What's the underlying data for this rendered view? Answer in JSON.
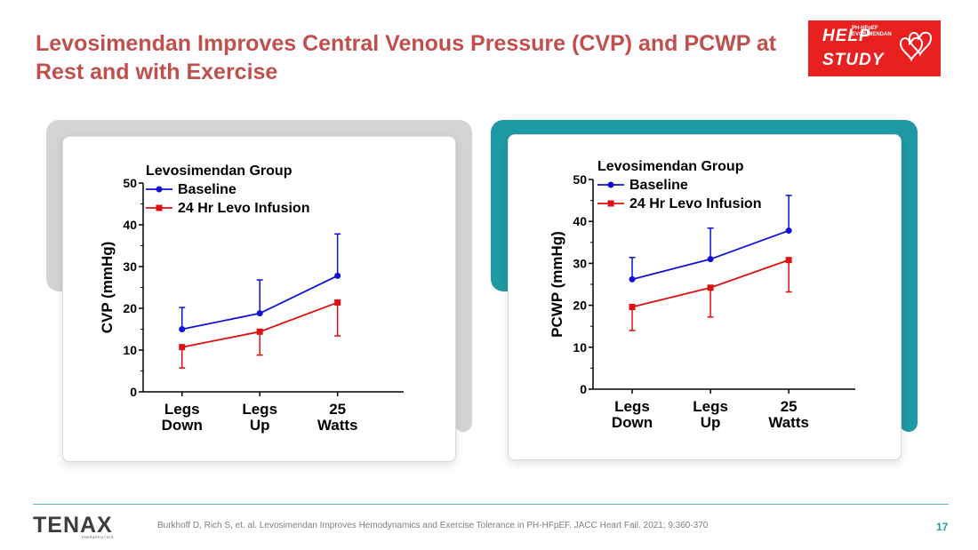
{
  "slide": {
    "title": "Levosimendan Improves Central Venous Pressure (CVP) and PCWP at Rest and with Exercise",
    "logo": {
      "top": "HELP",
      "sub1": "PH-HFpEF",
      "sub2": "EVOSIMENDAN",
      "bottom": "STUDY",
      "icon": "double-heart-icon"
    },
    "brand": {
      "name": "TENAX",
      "sub": "THERAPEUTICS"
    },
    "citation": "Burkhoff D, Rich S, et. al. Levosimendan Improves Hemodynamics and Exercise Tolerance in PH-HFpEF. JACC Heart Fail. 2021; 9:360-370",
    "page_number": "17",
    "colors": {
      "title": "#c0504d",
      "accent_teal": "#1f9aa4",
      "left_panel_back": "#d4d4d4",
      "badge_red": "#e8201f",
      "baseline": "#1010d8",
      "levo": "#e01010"
    }
  },
  "chart_data": [
    {
      "type": "line",
      "title": "",
      "legend_title": "Levosimendan Group",
      "xlabel": "",
      "ylabel": "CVP (mmHg)",
      "categories": [
        "Legs Down",
        "Legs Up",
        "25 Watts"
      ],
      "ylim": [
        0,
        50
      ],
      "yticks": [
        0,
        10,
        20,
        30,
        40,
        50
      ],
      "legend_position": "top-left",
      "series": [
        {
          "name": "Baseline",
          "color": "#1010d8",
          "marker": "circle",
          "values": [
            15,
            18.8,
            27.8
          ],
          "error_upper": [
            5.2,
            8,
            10
          ],
          "error_direction": "up"
        },
        {
          "name": "24 Hr Levo Infusion",
          "color": "#e01010",
          "marker": "square",
          "values": [
            10.7,
            14.4,
            21.4
          ],
          "error_lower": [
            5,
            5.6,
            8
          ],
          "error_direction": "down"
        }
      ]
    },
    {
      "type": "line",
      "title": "",
      "legend_title": "Levosimendan Group",
      "xlabel": "",
      "ylabel": "PCWP (mmHg)",
      "categories": [
        "Legs Down",
        "Legs Up",
        "25 Watts"
      ],
      "ylim": [
        0,
        50
      ],
      "yticks": [
        0,
        10,
        20,
        30,
        40,
        50
      ],
      "legend_position": "top-left",
      "series": [
        {
          "name": "Baseline",
          "color": "#1010d8",
          "marker": "circle",
          "values": [
            26.2,
            31,
            37.8
          ],
          "error_upper": [
            5.2,
            7.4,
            8.4
          ],
          "error_direction": "up"
        },
        {
          "name": "24 Hr Levo Infusion",
          "color": "#e01010",
          "marker": "square",
          "values": [
            19.6,
            24.2,
            30.8
          ],
          "error_lower": [
            5.6,
            7,
            7.6
          ],
          "error_direction": "down"
        }
      ]
    }
  ]
}
